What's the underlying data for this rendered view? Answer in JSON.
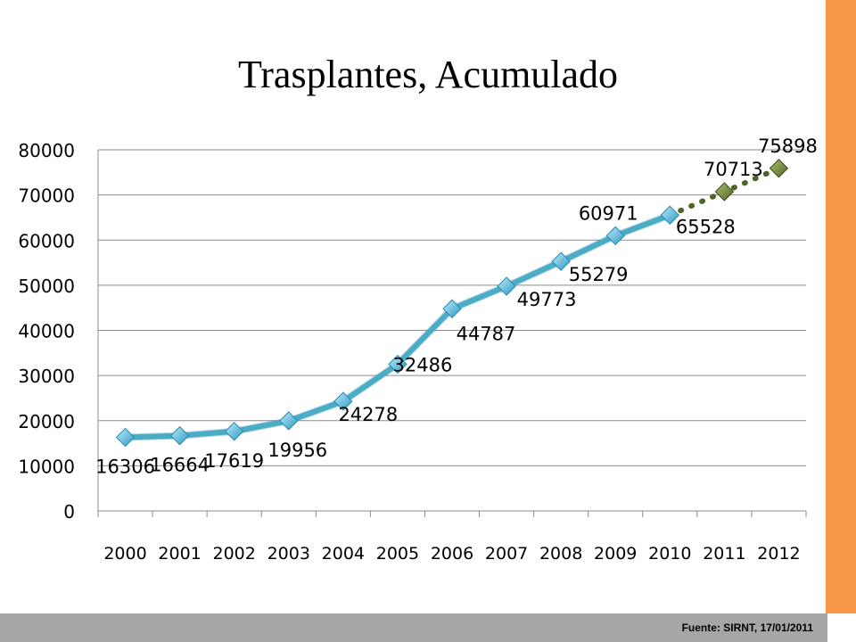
{
  "title": "Trasplantes, Acumulado",
  "footer": {
    "source": "Fuente: SIRNT, 17/01/2011"
  },
  "colors": {
    "accent": "#f79646",
    "footer_bar": "#a6a6a6",
    "actual_line": "#4bacc6",
    "projection_line": "#4f6228",
    "marker_fill": "#5cc3e6",
    "projection_marker_fill": "#77933c",
    "gridline": "#8c8c8c"
  },
  "chart_data": {
    "type": "line",
    "title": "Trasplantes, Acumulado",
    "xlabel": "",
    "ylabel": "",
    "ylim": [
      0,
      80000
    ],
    "yticks": [
      "0",
      "10000",
      "20000",
      "30000",
      "40000",
      "50000",
      "60000",
      "70000",
      "80000"
    ],
    "yticks_values": [
      0,
      10000,
      20000,
      30000,
      40000,
      50000,
      60000,
      70000,
      80000
    ],
    "grid": true,
    "legend": "none",
    "categories": [
      "2000",
      "2001",
      "2002",
      "2003",
      "2004",
      "2005",
      "2006",
      "2007",
      "2008",
      "2009",
      "2010",
      "2011",
      "2012"
    ],
    "series": [
      {
        "style": "solid",
        "values": [
          16306,
          16664,
          17619,
          19956,
          24278,
          32486,
          44787,
          49773,
          55279,
          60971,
          65528,
          null,
          null
        ],
        "labels": [
          "16306",
          "16664",
          "17619",
          "19956",
          "24278",
          "32486",
          "44787",
          "49773",
          "55279",
          "60971",
          "65528",
          "",
          ""
        ]
      },
      {
        "style": "dotted",
        "values": [
          null,
          null,
          null,
          null,
          null,
          null,
          null,
          null,
          null,
          null,
          65528,
          70713,
          75898
        ],
        "labels": [
          "",
          "",
          "",
          "",
          "",
          "",
          "",
          "",
          "",
          "",
          "",
          "70713",
          "75898"
        ]
      }
    ]
  }
}
